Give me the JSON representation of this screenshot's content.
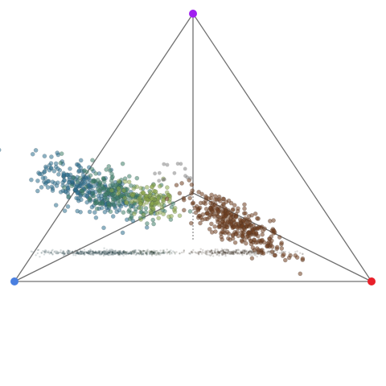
{
  "chart_data": {
    "type": "scatter",
    "projection": "3d-tetrahedron",
    "title": "",
    "axis_labels": [],
    "legend": "none",
    "grid": false,
    "shadow": true,
    "vertices": [
      {
        "id": "apex",
        "color": "#a020f0"
      },
      {
        "id": "left",
        "color": "#4a7fe0"
      },
      {
        "id": "right",
        "color": "#e8202a"
      },
      {
        "id": "back",
        "color": "#ffffff"
      }
    ],
    "edge_color": "#707070",
    "clusters": [
      {
        "name": "",
        "color": "#2e6f8e",
        "shadow_color": "#1f3f44",
        "count": 280,
        "center": [
          0.2,
          0.24,
          0.15
        ],
        "spread": [
          0.07,
          0.03,
          0.04
        ],
        "tilt": 0.6
      },
      {
        "name": "",
        "color": "#3f7f6a",
        "shadow_color": "#1f3f44",
        "count": 200,
        "center": [
          0.3,
          0.22,
          0.15
        ],
        "spread": [
          0.06,
          0.03,
          0.03
        ],
        "tilt": 0.5
      },
      {
        "name": "",
        "color": "#8aa64a",
        "shadow_color": "#2a3c2a",
        "count": 110,
        "center": [
          0.38,
          0.21,
          0.14
        ],
        "spread": [
          0.04,
          0.02,
          0.03
        ],
        "tilt": 0.4
      },
      {
        "name": "",
        "color": "#6e3d1d",
        "shadow_color": "#3a2a22",
        "count": 340,
        "center": [
          0.62,
          0.14,
          0.13
        ],
        "spread": [
          0.07,
          0.025,
          0.025
        ],
        "tilt": 0.9
      }
    ]
  }
}
